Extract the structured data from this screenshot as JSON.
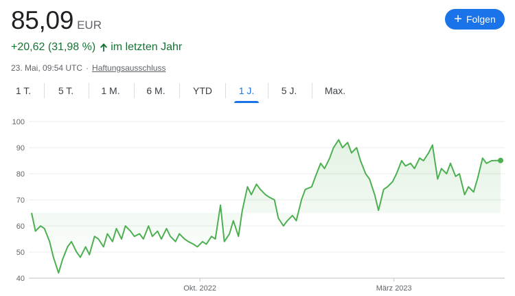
{
  "quote": {
    "price": "85,09",
    "currency": "EUR",
    "change": "+20,62 (31,98 %)",
    "change_period": "im letzten Jahr",
    "timestamp": "23. Mai, 09:54 UTC",
    "separator": "·",
    "disclaimer": "Haftungsausschluss",
    "positive_color": "#137333"
  },
  "follow_button": {
    "label": "Folgen",
    "icon": "plus-icon",
    "color": "#1a73e8"
  },
  "range_tabs": [
    {
      "label": "1 T.",
      "active": false
    },
    {
      "label": "5 T.",
      "active": false
    },
    {
      "label": "1 M.",
      "active": false
    },
    {
      "label": "6 M.",
      "active": false
    },
    {
      "label": "YTD",
      "active": false
    },
    {
      "label": "1 J.",
      "active": true
    },
    {
      "label": "5 J.",
      "active": false
    },
    {
      "label": "Max.",
      "active": false
    }
  ],
  "chart_data": {
    "type": "line",
    "title": "",
    "xlabel": "",
    "ylabel": "",
    "ylim": [
      40,
      100
    ],
    "yticks": [
      40,
      50,
      60,
      70,
      80,
      90,
      100
    ],
    "xticks": [
      {
        "label": "Okt. 2022",
        "x": "2022-10-01"
      },
      {
        "label": "März 2023",
        "x": "2023-03-01"
      }
    ],
    "grid": true,
    "line_color": "#4caf50",
    "series": [
      {
        "name": "",
        "x": [
          "2022-05-23",
          "2022-05-26",
          "2022-05-30",
          "2022-06-02",
          "2022-06-06",
          "2022-06-09",
          "2022-06-13",
          "2022-06-16",
          "2022-06-20",
          "2022-06-23",
          "2022-06-27",
          "2022-06-30",
          "2022-07-04",
          "2022-07-07",
          "2022-07-11",
          "2022-07-14",
          "2022-07-18",
          "2022-07-21",
          "2022-07-25",
          "2022-07-28",
          "2022-08-01",
          "2022-08-04",
          "2022-08-08",
          "2022-08-11",
          "2022-08-15",
          "2022-08-18",
          "2022-08-22",
          "2022-08-25",
          "2022-08-29",
          "2022-09-01",
          "2022-09-05",
          "2022-09-08",
          "2022-09-12",
          "2022-09-15",
          "2022-09-19",
          "2022-09-22",
          "2022-09-26",
          "2022-09-29",
          "2022-10-03",
          "2022-10-06",
          "2022-10-10",
          "2022-10-13",
          "2022-10-17",
          "2022-10-20",
          "2022-10-24",
          "2022-10-27",
          "2022-10-31",
          "2022-11-03",
          "2022-11-07",
          "2022-11-10",
          "2022-11-14",
          "2022-11-17",
          "2022-11-21",
          "2022-11-24",
          "2022-11-28",
          "2022-12-01",
          "2022-12-05",
          "2022-12-08",
          "2022-12-12",
          "2022-12-15",
          "2022-12-19",
          "2022-12-22",
          "2022-12-27",
          "2022-12-30",
          "2023-01-03",
          "2023-01-06",
          "2023-01-10",
          "2023-01-13",
          "2023-01-17",
          "2023-01-20",
          "2023-01-24",
          "2023-01-27",
          "2023-01-31",
          "2023-02-03",
          "2023-02-07",
          "2023-02-10",
          "2023-02-14",
          "2023-02-17",
          "2023-02-21",
          "2023-02-24",
          "2023-02-28",
          "2023-03-03",
          "2023-03-07",
          "2023-03-10",
          "2023-03-14",
          "2023-03-17",
          "2023-03-21",
          "2023-03-24",
          "2023-03-28",
          "2023-03-31",
          "2023-04-04",
          "2023-04-07",
          "2023-04-11",
          "2023-04-14",
          "2023-04-18",
          "2023-04-21",
          "2023-04-25",
          "2023-04-28",
          "2023-05-02",
          "2023-05-05",
          "2023-05-09",
          "2023-05-12",
          "2023-05-16",
          "2023-05-19",
          "2023-05-23"
        ],
        "values": [
          65,
          58,
          60,
          59,
          54,
          48,
          42,
          47,
          52,
          54,
          50,
          48,
          52,
          49,
          56,
          55,
          52,
          57,
          54,
          59,
          55,
          60,
          58,
          56,
          57,
          55,
          60,
          56,
          58,
          55,
          59,
          56,
          54,
          57,
          55,
          54,
          53,
          52,
          54,
          53,
          56,
          55,
          68,
          54,
          57,
          62,
          56,
          66,
          75,
          72,
          76,
          74,
          72,
          71,
          70,
          63,
          60,
          62,
          64,
          62,
          70,
          74,
          75,
          79,
          84,
          82,
          86,
          90,
          93,
          90,
          92,
          88,
          90,
          85,
          80,
          78,
          72,
          66,
          74,
          75,
          77,
          80,
          85,
          83,
          84,
          82,
          86,
          85,
          88,
          91,
          78,
          82,
          80,
          84,
          79,
          80,
          72,
          75,
          73,
          78,
          86,
          84,
          85,
          85.09,
          85.09
        ]
      }
    ]
  }
}
